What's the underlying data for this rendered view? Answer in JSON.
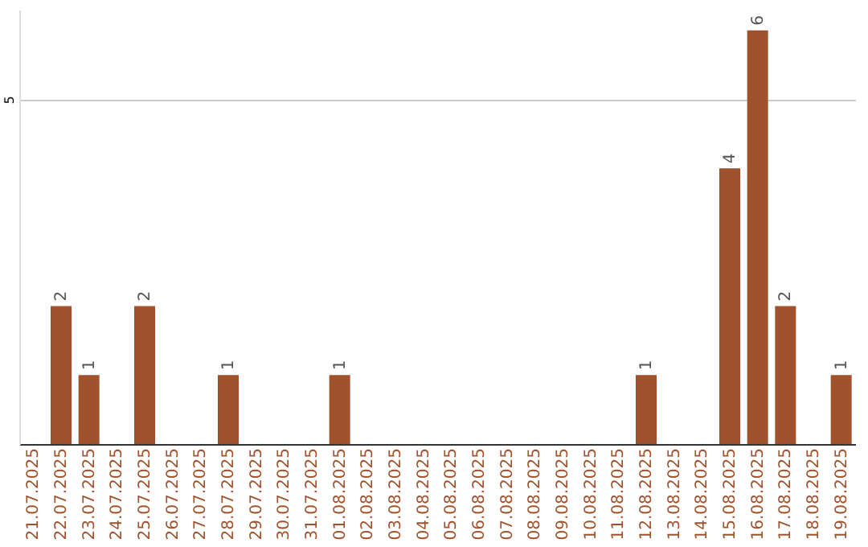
{
  "chart_data": {
    "type": "bar",
    "categories": [
      "21.07.2025",
      "22.07.2025",
      "23.07.2025",
      "24.07.2025",
      "25.07.2025",
      "26.07.2025",
      "27.07.2025",
      "28.07.2025",
      "29.07.2025",
      "30.07.2025",
      "31.07.2025",
      "01.08.2025",
      "02.08.2025",
      "03.08.2025",
      "04.08.2025",
      "05.08.2025",
      "06.08.2025",
      "07.08.2025",
      "08.08.2025",
      "09.08.2025",
      "10.08.2025",
      "11.08.2025",
      "12.08.2025",
      "13.08.2025",
      "14.08.2025",
      "15.08.2025",
      "16.08.2025",
      "17.08.2025",
      "18.08.2025",
      "19.08.2025"
    ],
    "values": [
      0,
      2,
      1,
      0,
      2,
      0,
      0,
      1,
      0,
      0,
      0,
      1,
      0,
      0,
      0,
      0,
      0,
      0,
      0,
      0,
      0,
      0,
      1,
      0,
      0,
      4,
      6,
      2,
      0,
      1
    ],
    "value_labels": [
      null,
      "2",
      "1",
      null,
      "2",
      null,
      null,
      "1",
      null,
      null,
      null,
      "1",
      null,
      null,
      null,
      null,
      null,
      null,
      null,
      null,
      null,
      null,
      "1",
      null,
      null,
      "4",
      "6",
      "2",
      null,
      "1"
    ],
    "color": "#a0522d",
    "ylim": [
      0,
      6.3
    ],
    "yticks": [
      5
    ],
    "grid": "y"
  }
}
